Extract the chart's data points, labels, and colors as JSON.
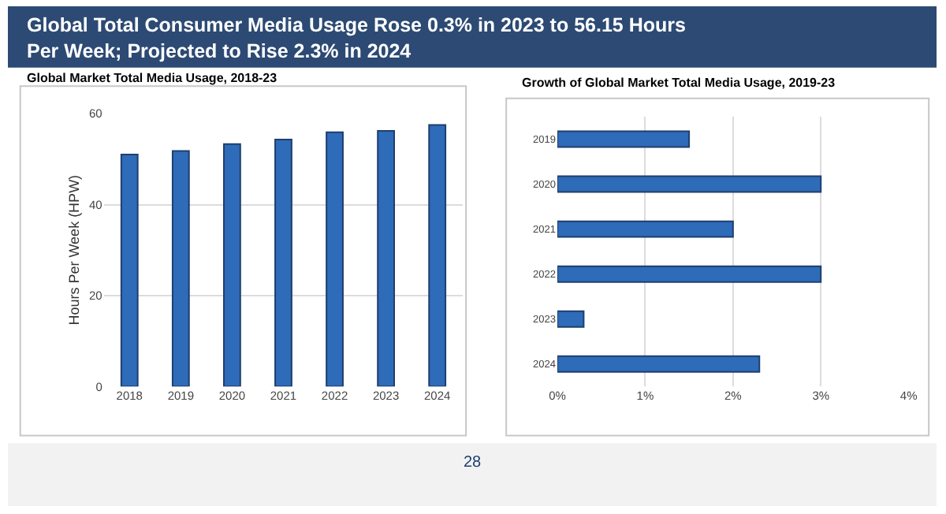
{
  "chart_data": [
    {
      "type": "bar",
      "title": "Global Total Consumer Media Usage Rose 0.3% in 2023 to 56.15 Hours Per Week; Projected to Rise 2.3% in 2024",
      "subtitle": "Global Market Total Media Usage, 2018-23",
      "ylabel": "Hours Per Week (HPW)",
      "categories": [
        "2018",
        "2019",
        "2020",
        "2021",
        "2022",
        "2023",
        "2024"
      ],
      "values": [
        51.0,
        51.8,
        53.3,
        54.3,
        55.9,
        56.2,
        57.5
      ],
      "color": "#2e6bb8",
      "ylim": [
        0,
        60
      ],
      "yticks": [
        0,
        20,
        40,
        60
      ],
      "grid": "y",
      "legend": false,
      "annotations": [
        "28"
      ]
    },
    {
      "type": "bar",
      "orientation": "horizontal",
      "title": "Growth of Global Market Total Media Usage, 2019-23",
      "categories": [
        "2019",
        "2020",
        "2021",
        "2022",
        "2023",
        "2024"
      ],
      "values": [
        1.5,
        3.0,
        2.0,
        3.0,
        0.3,
        2.3
      ],
      "color": "#2e6bb8",
      "xlim": [
        0,
        4
      ],
      "xticks": [
        {
          "value": 0,
          "label": "0%"
        },
        {
          "value": 1,
          "label": "1%"
        },
        {
          "value": 2,
          "label": "2%"
        },
        {
          "value": 3,
          "label": "3%"
        },
        {
          "value": 4,
          "label": "4%"
        }
      ],
      "grid": "x",
      "legend": false
    }
  ]
}
